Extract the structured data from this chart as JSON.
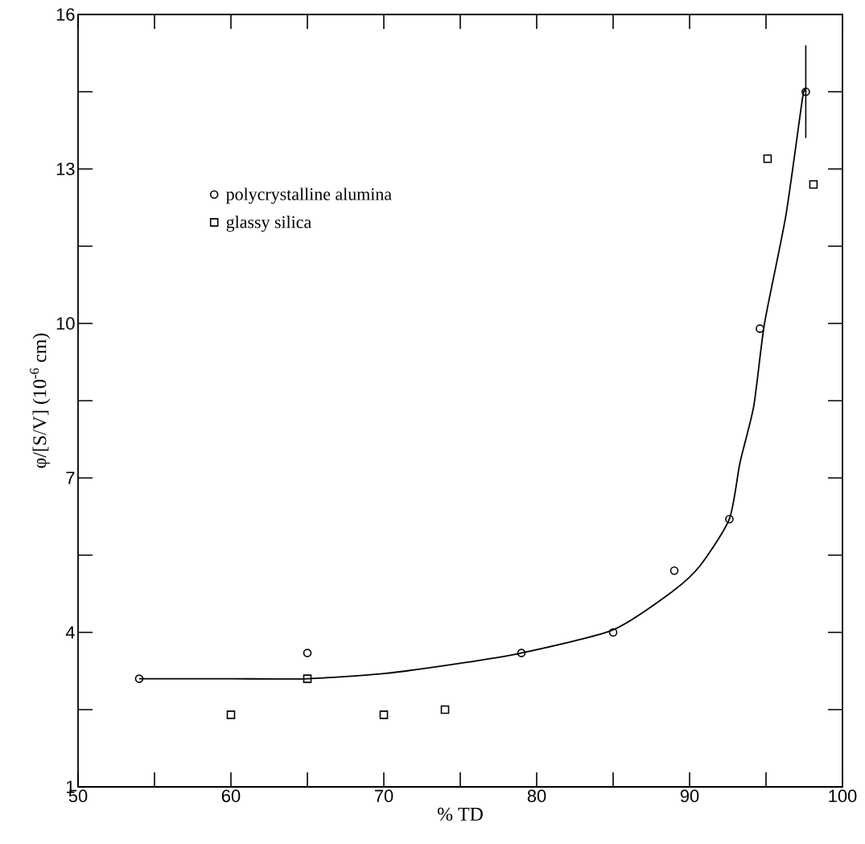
{
  "chart_data": {
    "type": "scatter",
    "xlabel": "% TD",
    "ylabel": "φ/[S/V] (10$^{-6}$ cm)",
    "xlim": [
      50,
      100
    ],
    "ylim": [
      1,
      16
    ],
    "xticks": [
      50,
      60,
      70,
      80,
      90,
      100
    ],
    "yticks": [
      1,
      4,
      7,
      10,
      13,
      16
    ],
    "legend": "top left",
    "series": [
      {
        "name": "polycrystalline alumina",
        "type": "scatter",
        "marker": "circle",
        "color": "#000000",
        "x": [
          54,
          65,
          79,
          85,
          89,
          92.6,
          94.6,
          97.6
        ],
        "values": [
          3.1,
          3.6,
          3.6,
          4.0,
          5.2,
          6.2,
          9.9,
          14.5
        ],
        "errors": [
          null,
          null,
          null,
          null,
          null,
          null,
          null,
          [
            13.6,
            15.4
          ]
        ]
      },
      {
        "name": "glassy silica",
        "type": "scatter",
        "marker": "square",
        "color": "#000000",
        "x": [
          60,
          65,
          70,
          74,
          95.1,
          98.1
        ],
        "values": [
          2.4,
          3.1,
          2.4,
          2.5,
          13.2,
          12.7
        ]
      },
      {
        "type": "line",
        "line_style": "solid",
        "color": "#000000",
        "x": [
          54,
          60,
          65,
          70,
          75,
          79,
          85,
          88.9,
          90.7,
          92.6,
          93.3,
          94.2,
          94.9,
          96.3,
          97.4,
          97.6
        ],
        "values": [
          3.1,
          3.1,
          3.1,
          3.2,
          3.4,
          3.6,
          4.05,
          4.8,
          5.3,
          6.2,
          7.3,
          8.4,
          10.0,
          12.1,
          14.4,
          14.5
        ]
      }
    ]
  }
}
